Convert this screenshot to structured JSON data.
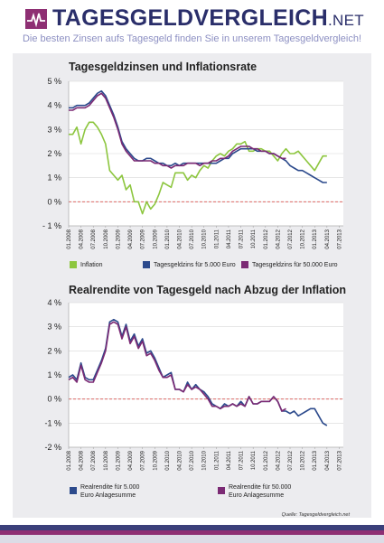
{
  "header": {
    "logo_main": "TAGESGELDVERGLEICH",
    "logo_suffix": ".NET",
    "tagline": "Die besten Zinsen aufs Tagesgeld finden Sie in unserem Tagesgeldvergleich!"
  },
  "colors": {
    "inflation": "#8dc63f",
    "rate_5000": "#2c4a8c",
    "rate_50000": "#7b2a74",
    "zero_line": "#d9534f",
    "brand_navy": "#2a2e6a",
    "brand_purple": "#8e2f73"
  },
  "source": "Quelle: Tagesgeldvergleich.net",
  "chart_data": [
    {
      "type": "line",
      "title": "Tagesgeldzinsen und Inflationsrate",
      "ylim": [
        -1,
        5
      ],
      "y_ticks": [
        "5 %",
        "4 %",
        "3 %",
        "2 %",
        "1 %",
        "0 %",
        "- 1 %"
      ],
      "x_ticks": [
        "01.2008",
        "04.2008",
        "07.2008",
        "10.2008",
        "01.2009",
        "04.2009",
        "07.2009",
        "10.2009",
        "01.2010",
        "04.2010",
        "07.2010",
        "10.2010",
        "01.2011",
        "04.2011",
        "07.2011",
        "10.2011",
        "01.2012",
        "04.2012",
        "07.2012",
        "10.2012",
        "01.2013",
        "04.2013",
        "07.2013"
      ],
      "x_range": [
        "01.2008",
        "08.2013"
      ],
      "reference_line": 0,
      "series": [
        {
          "name": "Inflation",
          "color": "#8dc63f",
          "values": [
            2.8,
            2.8,
            3.1,
            2.4,
            3.0,
            3.3,
            3.3,
            3.1,
            2.8,
            2.4,
            1.3,
            1.1,
            0.9,
            1.1,
            0.5,
            0.7,
            0.0,
            0.0,
            -0.5,
            0.0,
            -0.3,
            -0.1,
            0.3,
            0.8,
            0.7,
            0.6,
            1.2,
            1.2,
            1.2,
            0.9,
            1.1,
            1.0,
            1.3,
            1.5,
            1.4,
            1.7,
            1.9,
            2.0,
            1.9,
            2.1,
            2.2,
            2.4,
            2.4,
            2.5,
            2.1,
            2.1,
            2.2,
            2.2,
            2.1,
            2.1,
            1.9,
            1.7,
            2.0,
            2.2,
            2.0,
            2.0,
            2.1,
            1.9,
            1.7,
            1.5,
            1.3,
            1.6,
            1.9,
            1.9
          ]
        },
        {
          "name": "Tagesgeldzins für 5.000 Euro",
          "color": "#2c4a8c",
          "values": [
            3.9,
            3.9,
            4.0,
            4.0,
            4.0,
            4.1,
            4.3,
            4.5,
            4.6,
            4.4,
            4.0,
            3.6,
            3.1,
            2.5,
            2.2,
            2.0,
            1.8,
            1.7,
            1.7,
            1.8,
            1.8,
            1.7,
            1.6,
            1.6,
            1.5,
            1.5,
            1.6,
            1.5,
            1.6,
            1.6,
            1.6,
            1.6,
            1.6,
            1.6,
            1.6,
            1.6,
            1.6,
            1.7,
            1.8,
            1.8,
            2.0,
            2.1,
            2.2,
            2.2,
            2.2,
            2.2,
            2.1,
            2.1,
            2.1,
            2.0,
            2.0,
            1.9,
            1.8,
            1.7,
            1.5,
            1.4,
            1.3,
            1.3,
            1.2,
            1.1,
            1.0,
            0.9,
            0.8,
            0.8
          ]
        },
        {
          "name": "Tagesgeldzins für 50.000 Euro",
          "color": "#7b2a74",
          "values": [
            3.8,
            3.8,
            3.9,
            3.9,
            3.9,
            4.0,
            4.2,
            4.4,
            4.5,
            4.3,
            3.9,
            3.5,
            3.0,
            2.4,
            2.1,
            1.9,
            1.7,
            1.7,
            1.7,
            1.7,
            1.7,
            1.6,
            1.6,
            1.5,
            1.5,
            1.4,
            1.5,
            1.5,
            1.5,
            1.6,
            1.6,
            1.6,
            1.5,
            1.6,
            1.6,
            1.7,
            1.7,
            1.8,
            1.8,
            1.9,
            2.1,
            2.2,
            2.3,
            2.3,
            2.3,
            2.2,
            2.2,
            2.1,
            2.1,
            2.0,
            2.0,
            1.9,
            1.8,
            1.8
          ]
        }
      ]
    },
    {
      "type": "line",
      "title": "Realrendite von Tagesgeld nach Abzug der Inflation",
      "ylim": [
        -2,
        4
      ],
      "y_ticks": [
        "4 %",
        "3 %",
        "2 %",
        "1 %",
        "0 %",
        "-1 %",
        "-2 %"
      ],
      "x_ticks": [
        "01.2008",
        "04.2008",
        "07.2008",
        "10.2008",
        "01.2009",
        "04.2009",
        "07.2009",
        "10.2009",
        "01.2010",
        "04.2010",
        "07.2010",
        "10.2010",
        "01.2011",
        "04.2011",
        "07.2011",
        "10.2011",
        "01.2012",
        "04.2012",
        "07.2012",
        "10.2012",
        "01.2013",
        "04.2013",
        "07.2013"
      ],
      "x_range": [
        "01.2008",
        "08.2013"
      ],
      "reference_line": 0,
      "series": [
        {
          "name": "Realrendite für 5.000 Euro Anlagesumme",
          "color": "#2c4a8c",
          "values": [
            0.9,
            1.0,
            0.8,
            1.5,
            0.9,
            0.8,
            0.8,
            1.2,
            1.6,
            2.1,
            3.2,
            3.3,
            3.2,
            2.6,
            3.1,
            2.4,
            2.7,
            2.2,
            2.5,
            1.9,
            2.0,
            1.7,
            1.3,
            0.9,
            1.0,
            1.1,
            0.4,
            0.4,
            0.3,
            0.7,
            0.4,
            0.6,
            0.4,
            0.3,
            0.1,
            -0.2,
            -0.3,
            -0.4,
            -0.2,
            -0.3,
            -0.2,
            -0.3,
            -0.1,
            -0.3,
            0.1,
            -0.2,
            -0.2,
            -0.1,
            -0.1,
            -0.1,
            0.1,
            -0.1,
            -0.5,
            -0.5,
            -0.6,
            -0.5,
            -0.7,
            -0.6,
            -0.5,
            -0.4,
            -0.4,
            -0.7,
            -1.0,
            -1.1
          ]
        },
        {
          "name": "Realrendite für 50.000 Euro Anlagesumme",
          "color": "#7b2a74",
          "values": [
            0.8,
            0.9,
            0.7,
            1.4,
            0.8,
            0.7,
            0.7,
            1.1,
            1.5,
            2.0,
            3.1,
            3.2,
            3.1,
            2.5,
            3.0,
            2.3,
            2.6,
            2.1,
            2.4,
            1.8,
            1.9,
            1.6,
            1.2,
            0.9,
            0.9,
            1.0,
            0.4,
            0.4,
            0.3,
            0.6,
            0.4,
            0.5,
            0.4,
            0.2,
            0.0,
            -0.3,
            -0.3,
            -0.4,
            -0.3,
            -0.3,
            -0.2,
            -0.3,
            -0.2,
            -0.3,
            0.1,
            -0.2,
            -0.2,
            -0.1,
            -0.1,
            -0.1,
            0.1,
            -0.1,
            -0.5,
            -0.4
          ]
        }
      ]
    }
  ]
}
